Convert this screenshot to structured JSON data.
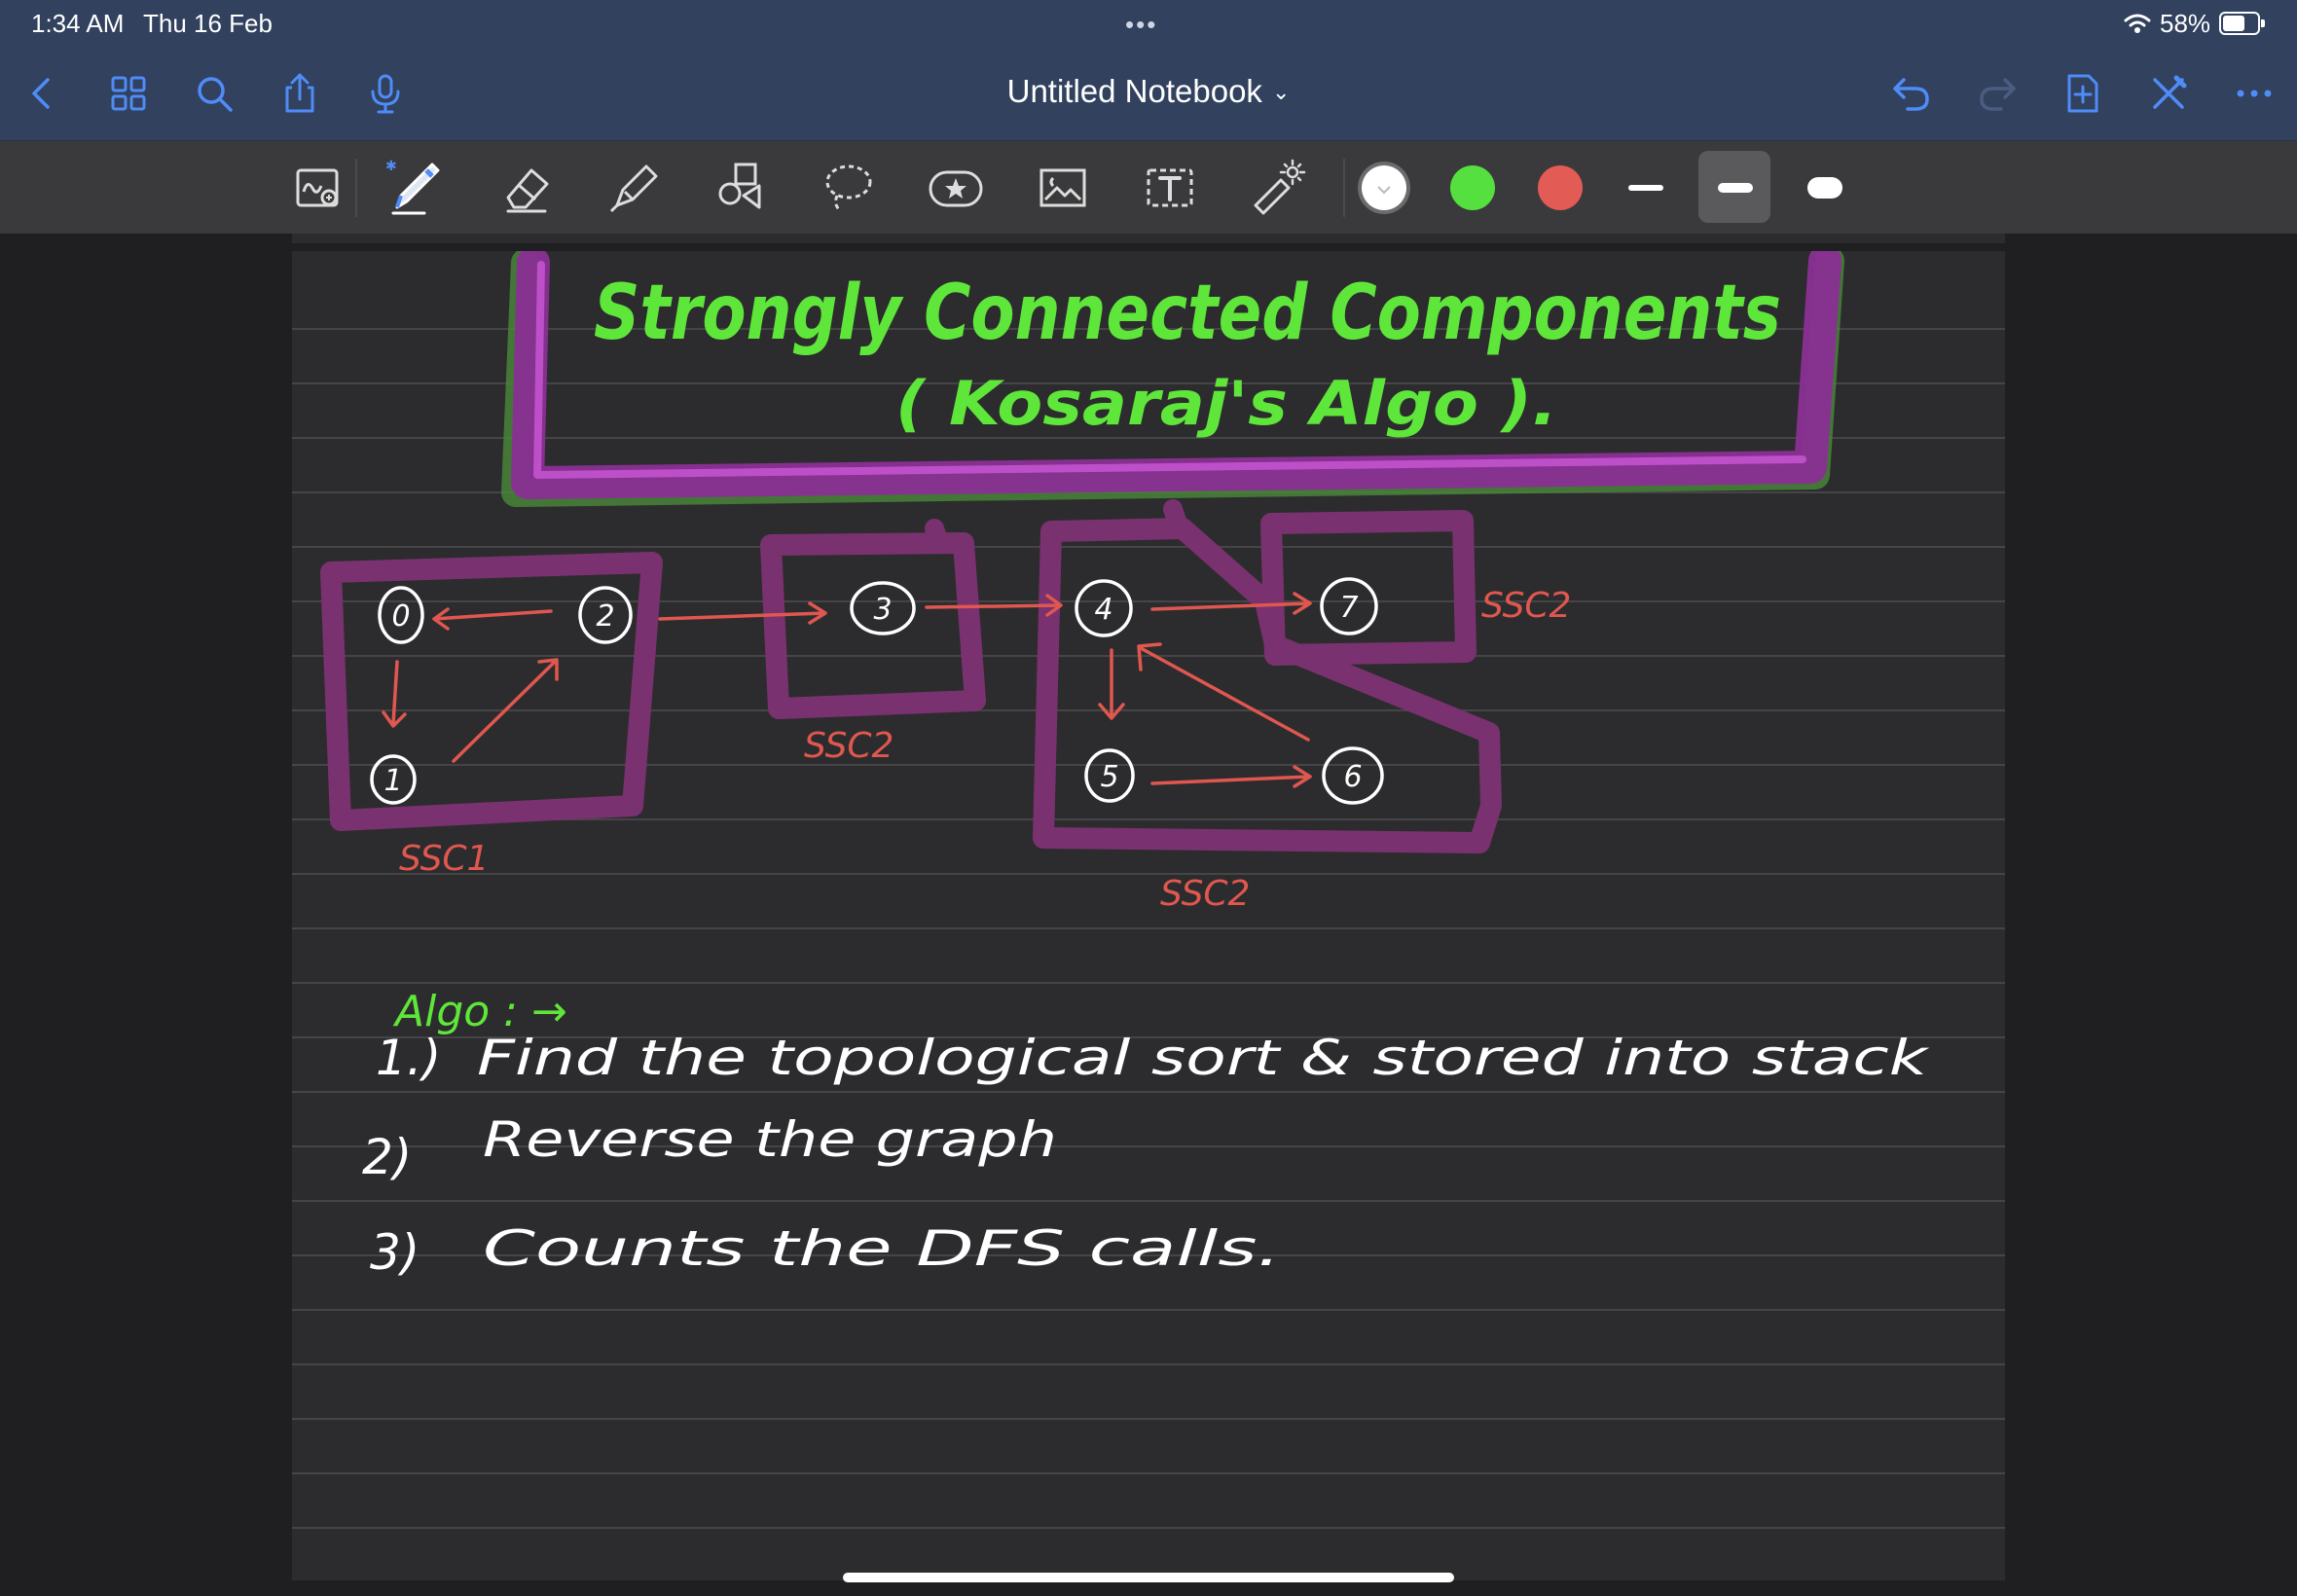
{
  "status_bar": {
    "time": "1:34 AM",
    "date": "Thu 16 Feb",
    "dots": "•••",
    "battery": "58%"
  },
  "nav": {
    "title": "Untitled Notebook",
    "icons": [
      "back-icon",
      "grid-icon",
      "search-icon",
      "share-icon",
      "microphone-icon",
      "undo-icon",
      "redo-icon",
      "add-page-icon",
      "close-pen-icon",
      "more-icon"
    ]
  },
  "toolbar": {
    "tools": [
      "zoom-window-tool",
      "pen-tool",
      "eraser-tool",
      "highlighter-tool",
      "shapes-tool",
      "lasso-tool",
      "sticker-tool",
      "image-tool",
      "text-tool",
      "laser-pointer-tool"
    ],
    "colors": [
      "#ffffff",
      "#55e040",
      "#e35b55"
    ],
    "selected_color": "#ffffff",
    "stroke_widths": [
      "thin",
      "medium",
      "thick"
    ],
    "selected_stroke": "medium"
  },
  "note": {
    "title_line1": "Strongly Connected Components",
    "title_line2": "( Kosaraj's Algo ).",
    "nodes": [
      "0",
      "2",
      "1",
      "3",
      "4",
      "7",
      "5",
      "6"
    ],
    "component_labels": [
      "SSC1",
      "SSC2",
      "SSC2",
      "SSC2"
    ],
    "algo_heading": "Algo : →",
    "steps": [
      {
        "num": "1.)",
        "text": "Find  the  topological  sort  &  stored  into  stack"
      },
      {
        "num": "2)",
        "text": "Reverse  the  graph"
      },
      {
        "num": "3)",
        "text": "Counts  the  DFS  calls."
      }
    ]
  },
  "colors": {
    "ink_green": "#5fe63a",
    "ink_red": "#e0574f",
    "highlight_purple": "#7a3170",
    "title_box_magenta": "#b43bc4",
    "nav_blue": "#31415e",
    "icon_blue": "#4f8cf7"
  }
}
